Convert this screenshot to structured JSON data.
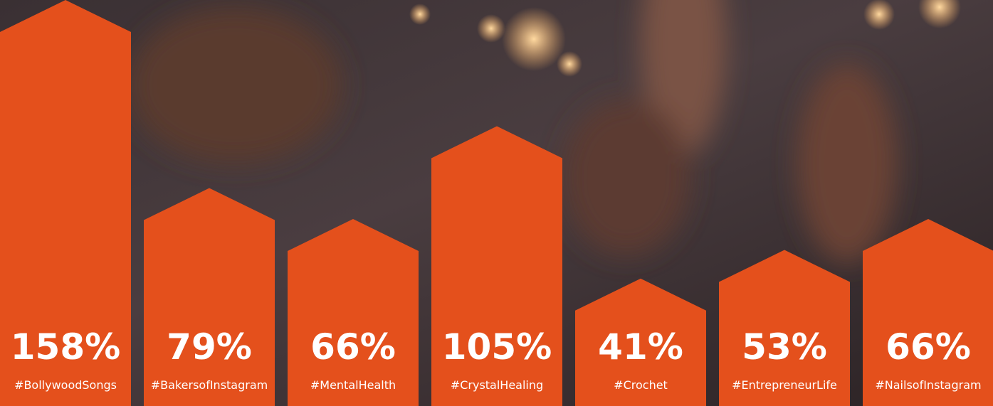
{
  "chart_data": {
    "type": "bar",
    "categories": [
      "#BollywoodSongs",
      "#BakersofInstagram",
      "#MentalHealth",
      "#CrystalHealing",
      "#Crochet",
      "#EntrepreneurLife",
      "#NailsofInstagram"
    ],
    "values": [
      158,
      79,
      66,
      105,
      41,
      53,
      66
    ],
    "value_labels": [
      "158%",
      "79%",
      "66%",
      "105%",
      "41%",
      "53%",
      "66%"
    ],
    "color": "#e4501c"
  }
}
